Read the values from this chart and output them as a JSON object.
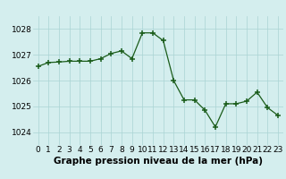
{
  "x": [
    0,
    1,
    2,
    3,
    4,
    5,
    6,
    7,
    8,
    9,
    10,
    11,
    12,
    13,
    14,
    15,
    16,
    17,
    18,
    19,
    20,
    21,
    22,
    23
  ],
  "y": [
    1026.55,
    1026.7,
    1026.72,
    1026.75,
    1026.75,
    1026.75,
    1026.85,
    1027.05,
    1027.15,
    1026.85,
    1027.85,
    1027.85,
    1027.55,
    1026.0,
    1025.25,
    1025.25,
    1024.85,
    1024.2,
    1025.1,
    1025.1,
    1025.2,
    1025.55,
    1024.95,
    1024.65
  ],
  "line_color": "#1a5c1a",
  "marker_color": "#1a5c1a",
  "bg_color": "#d4eeee",
  "grid_color": "#aad4d4",
  "title": "Graphe pression niveau de la mer (hPa)",
  "xlim": [
    -0.5,
    23.5
  ],
  "ylim": [
    1023.5,
    1028.5
  ],
  "yticks": [
    1024,
    1025,
    1026,
    1027,
    1028
  ],
  "xtick_labels": [
    "0",
    "1",
    "2",
    "3",
    "4",
    "5",
    "6",
    "7",
    "8",
    "9",
    "10",
    "11",
    "12",
    "13",
    "14",
    "15",
    "16",
    "17",
    "18",
    "19",
    "20",
    "21",
    "22",
    "23"
  ],
  "title_fontsize": 7.5,
  "tick_fontsize": 6.5
}
